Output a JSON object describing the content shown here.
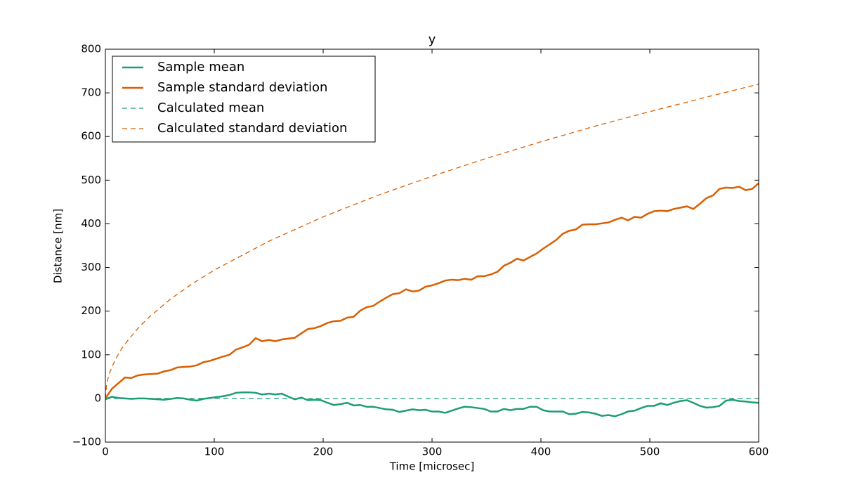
{
  "chart_data": {
    "type": "line",
    "title": "y",
    "x_label": "Time [microsec]",
    "y_label": "Distance [nm]",
    "xlim": [
      0,
      600
    ],
    "xticks": [
      0,
      100,
      200,
      300,
      400,
      500,
      600
    ],
    "ylim": [
      -100,
      800
    ],
    "yticks": [
      {
        "value": -100,
        "label": "−100"
      },
      0,
      100,
      200,
      300,
      400,
      500,
      600,
      700,
      800
    ],
    "legend": "upper left",
    "series": [
      {
        "name": "Sample mean",
        "color": "#1b9e77",
        "style": "solid",
        "x": [
          0,
          6,
          12,
          18,
          24,
          30,
          36,
          42,
          48,
          54,
          60,
          66,
          72,
          78,
          84,
          90,
          96,
          102,
          108,
          114,
          120,
          126,
          132,
          138,
          144,
          150,
          156,
          162,
          168,
          174,
          180,
          186,
          192,
          198,
          204,
          210,
          216,
          222,
          228,
          234,
          240,
          246,
          252,
          258,
          264,
          270,
          276,
          282,
          288,
          294,
          300,
          306,
          312,
          318,
          324,
          330,
          336,
          342,
          348,
          354,
          360,
          366,
          372,
          378,
          384,
          390,
          396,
          402,
          408,
          414,
          420,
          426,
          432,
          438,
          444,
          450,
          456,
          462,
          468,
          474,
          480,
          486,
          492,
          498,
          504,
          510,
          516,
          522,
          528,
          534,
          540,
          546,
          552,
          558,
          564,
          570,
          576,
          582,
          588,
          594,
          600
        ],
        "values": [
          -2,
          4,
          1,
          0,
          -1,
          0,
          0,
          -1,
          -2,
          -3,
          -1,
          1,
          0,
          -3,
          -5,
          -1,
          1,
          3,
          5,
          8,
          13,
          14,
          14,
          13,
          9,
          11,
          9,
          11,
          4,
          -2,
          2,
          -4,
          -3,
          -4,
          -10,
          -15,
          -13,
          -10,
          -16,
          -15,
          -19,
          -19,
          -22,
          -25,
          -26,
          -31,
          -28,
          -25,
          -27,
          -26,
          -30,
          -30,
          -33,
          -28,
          -23,
          -19,
          -20,
          -22,
          -24,
          -30,
          -30,
          -24,
          -27,
          -24,
          -24,
          -19,
          -19,
          -27,
          -30,
          -30,
          -30,
          -36,
          -35,
          -31,
          -32,
          -35,
          -40,
          -38,
          -41,
          -36,
          -30,
          -28,
          -22,
          -17,
          -17,
          -11,
          -15,
          -10,
          -6,
          -4,
          -10,
          -17,
          -21,
          -20,
          -17,
          -5,
          -3,
          -6,
          -7,
          -9,
          -10
        ]
      },
      {
        "name": "Sample standard deviation",
        "color": "#d95f02",
        "style": "solid",
        "x": [
          0,
          6,
          12,
          18,
          24,
          30,
          36,
          42,
          48,
          54,
          60,
          66,
          72,
          78,
          84,
          90,
          96,
          102,
          108,
          114,
          120,
          126,
          132,
          138,
          144,
          150,
          156,
          162,
          168,
          174,
          180,
          186,
          192,
          198,
          204,
          210,
          216,
          222,
          228,
          234,
          240,
          246,
          252,
          258,
          264,
          270,
          276,
          282,
          288,
          294,
          300,
          306,
          312,
          318,
          324,
          330,
          336,
          342,
          348,
          354,
          360,
          366,
          372,
          378,
          384,
          390,
          396,
          402,
          408,
          414,
          420,
          426,
          432,
          438,
          444,
          450,
          456,
          462,
          468,
          474,
          480,
          486,
          492,
          498,
          504,
          510,
          516,
          522,
          528,
          534,
          540,
          546,
          552,
          558,
          564,
          570,
          576,
          582,
          588,
          594,
          600
        ],
        "values": [
          0,
          22,
          35,
          48,
          47,
          53,
          55,
          56,
          57,
          62,
          65,
          71,
          72,
          73,
          76,
          83,
          86,
          91,
          96,
          100,
          112,
          117,
          123,
          138,
          131,
          134,
          131,
          135,
          137,
          139,
          149,
          159,
          161,
          166,
          173,
          177,
          178,
          185,
          187,
          201,
          209,
          212,
          222,
          231,
          239,
          241,
          250,
          245,
          247,
          256,
          259,
          264,
          270,
          272,
          271,
          274,
          272,
          280,
          280,
          284,
          290,
          304,
          311,
          320,
          316,
          324,
          332,
          343,
          353,
          363,
          377,
          384,
          387,
          398,
          399,
          399,
          401,
          403,
          409,
          414,
          408,
          416,
          414,
          423,
          429,
          430,
          429,
          434,
          437,
          440,
          434,
          446,
          459,
          465,
          480,
          483,
          482,
          485,
          477,
          480,
          493
        ]
      },
      {
        "name": "Calculated mean",
        "color": "#1b9e77",
        "style": "dashed",
        "x": [
          0,
          600
        ],
        "values": [
          0,
          0
        ]
      },
      {
        "name": "Calculated standard deviation",
        "color": "#d95f02",
        "style": "dashed",
        "x": [
          0,
          1,
          2,
          4,
          6,
          10,
          15,
          20,
          30,
          40,
          60,
          80,
          100,
          150,
          200,
          250,
          300,
          350,
          400,
          450,
          500,
          550,
          600
        ],
        "values": [
          0,
          29,
          42,
          59,
          72,
          93,
          114,
          131,
          161,
          186,
          228,
          263,
          294,
          360,
          416,
          465,
          509,
          550,
          588,
          624,
          657,
          689,
          720
        ]
      }
    ]
  }
}
